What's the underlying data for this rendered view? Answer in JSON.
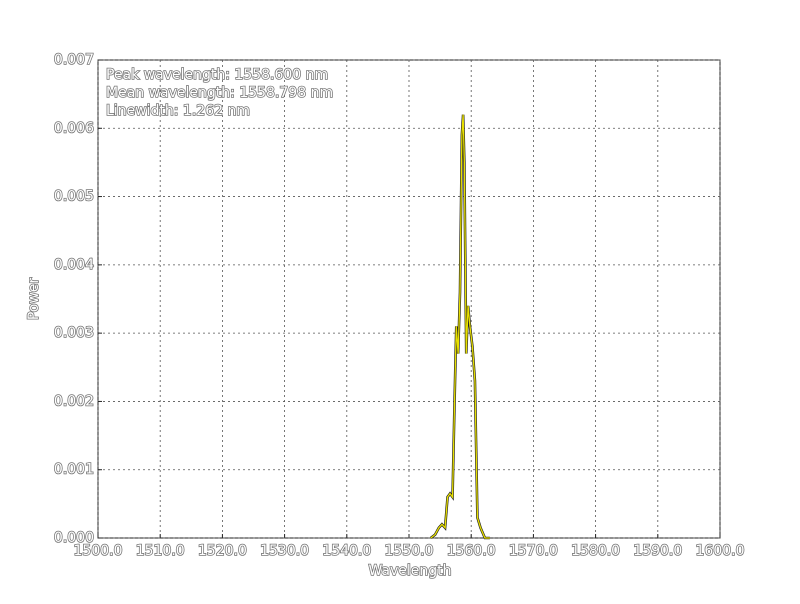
{
  "chart_data": {
    "type": "line",
    "annotations": [
      "Peak wavelength: 1558.600 nm",
      "Mean wavelength: 1558.798 nm",
      "Linewidth: 1.262 nm"
    ],
    "x_label": "Wavelength",
    "y_label": "Power",
    "x": [
      1553.5,
      1554.2,
      1554.8,
      1555.3,
      1555.8,
      1556.2,
      1556.6,
      1557.0,
      1557.3,
      1557.6,
      1557.9,
      1558.2,
      1558.5,
      1558.7,
      1558.9,
      1559.2,
      1559.5,
      1559.8,
      1560.2,
      1560.6,
      1561.0,
      1561.5,
      1562.2,
      1563.0
    ],
    "series": [
      {
        "color": "#e8e000",
        "values": [
          0,
          5e-05,
          0.00015,
          0.0002,
          0.00015,
          0.0006,
          0.00065,
          0.0006,
          0.0019,
          0.0031,
          0.0027,
          0.0036,
          0.0059,
          0.0062,
          0.0055,
          0.0027,
          0.0034,
          0.0031,
          0.0028,
          0.0023,
          0.0003,
          0.00015,
          0,
          0
        ]
      }
    ],
    "xlim": [
      1500,
      1600
    ],
    "xticks": [
      {
        "value": 1500,
        "label": "1500.0"
      },
      {
        "value": 1510,
        "label": "1510.0"
      },
      {
        "value": 1520,
        "label": "1520.0"
      },
      {
        "value": 1530,
        "label": "1530.0"
      },
      {
        "value": 1540,
        "label": "1540.0"
      },
      {
        "value": 1550,
        "label": "1550.0"
      },
      {
        "value": 1560,
        "label": "1560.0"
      },
      {
        "value": 1570,
        "label": "1570.0"
      },
      {
        "value": 1580,
        "label": "1580.0"
      },
      {
        "value": 1590,
        "label": "1590.0"
      },
      {
        "value": 1600,
        "label": "1600.0"
      }
    ],
    "ylim": [
      0,
      0.007
    ],
    "yticks": [
      {
        "value": 0,
        "label": "0.000"
      },
      0.001,
      0.002,
      0.003,
      0.004,
      0.005,
      0.006,
      0.007
    ],
    "grid": true
  }
}
